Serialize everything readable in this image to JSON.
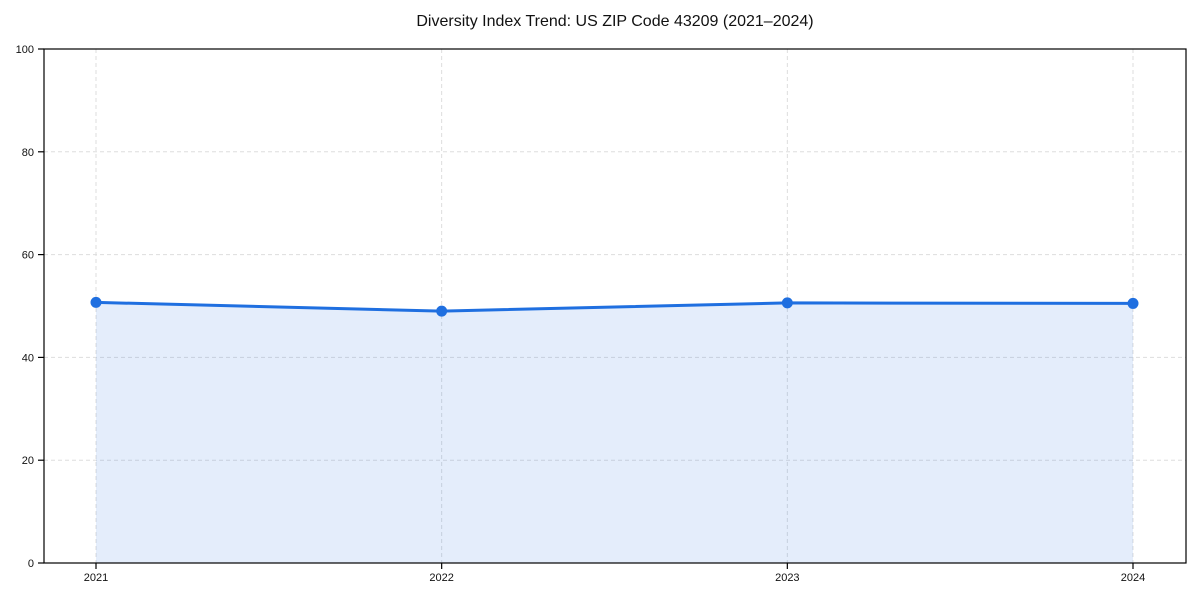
{
  "chart_data": {
    "type": "area",
    "title": "Diversity Index Trend: US ZIP Code 43209 (2021–2024)",
    "series_name": "Diversity Index",
    "x": [
      2021,
      2022,
      2023,
      2024
    ],
    "x_tick_labels": [
      "2021",
      "2022",
      "2023",
      "2024"
    ],
    "values": [
      50.7,
      49.0,
      50.6,
      50.5
    ],
    "xlabel": "",
    "ylabel": "",
    "ylim": [
      0,
      100
    ],
    "yticks": [
      0,
      20,
      40,
      60,
      80,
      100
    ],
    "grid": true,
    "grid_style": "dashed",
    "legend_position": "none",
    "colors": {
      "line": "#1f6fe0",
      "marker": "#1f6fe0",
      "fill_rgba": "rgba(31,111,224,0.12)",
      "grid": "#dddddd",
      "spine": "#000000",
      "tick_text": "#111111",
      "background": "#ffffff"
    }
  }
}
